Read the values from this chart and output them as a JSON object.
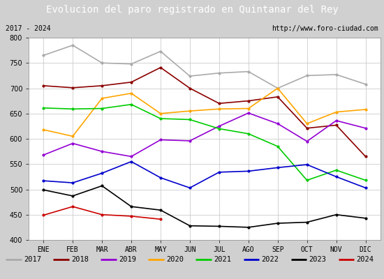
{
  "title": "Evolucion del paro registrado en Quintanar del Rey",
  "subtitle_left": "2017 - 2024",
  "subtitle_right": "http://www.foro-ciudad.com",
  "months": [
    "ENE",
    "FEB",
    "MAR",
    "ABR",
    "MAY",
    "JUN",
    "JUL",
    "AGO",
    "SEP",
    "OCT",
    "NOV",
    "DIC"
  ],
  "ylim": [
    400,
    800
  ],
  "yticks": [
    400,
    450,
    500,
    550,
    600,
    650,
    700,
    750,
    800
  ],
  "series": {
    "2017": {
      "color": "#aaaaaa",
      "values": [
        765,
        785,
        750,
        748,
        773,
        724,
        730,
        733,
        700,
        725,
        727,
        708
      ]
    },
    "2018": {
      "color": "#8b0000",
      "values": [
        705,
        701,
        705,
        712,
        741,
        700,
        670,
        675,
        683,
        621,
        627,
        565
      ]
    },
    "2019": {
      "color": "#9400d3",
      "values": [
        568,
        591,
        575,
        565,
        598,
        596,
        625,
        651,
        630,
        595,
        636,
        621
      ]
    },
    "2020": {
      "color": "#ffa500",
      "values": [
        618,
        605,
        680,
        690,
        650,
        655,
        659,
        660,
        700,
        630,
        653,
        658
      ]
    },
    "2021": {
      "color": "#00cc00",
      "values": [
        661,
        659,
        660,
        668,
        640,
        638,
        620,
        610,
        585,
        518,
        538,
        518
      ]
    },
    "2022": {
      "color": "#0000cc",
      "values": [
        517,
        513,
        532,
        555,
        523,
        503,
        534,
        536,
        543,
        549,
        525,
        503
      ]
    },
    "2023": {
      "color": "#000000",
      "values": [
        499,
        487,
        507,
        466,
        459,
        428,
        427,
        425,
        433,
        435,
        450,
        443
      ]
    },
    "2024": {
      "color": "#cc0000",
      "values": [
        449,
        466,
        450,
        447,
        441,
        null,
        null,
        null,
        null,
        null,
        null,
        null
      ]
    }
  },
  "background_color": "#d0d0d0",
  "plot_bg_color": "#ffffff",
  "title_bg_color": "#5b9bd5",
  "title_color": "#ffffff",
  "border_color": "#5b9bd5",
  "grid_color": "#cccccc",
  "title_fontsize": 10,
  "tick_fontsize": 7,
  "legend_fontsize": 7.5
}
